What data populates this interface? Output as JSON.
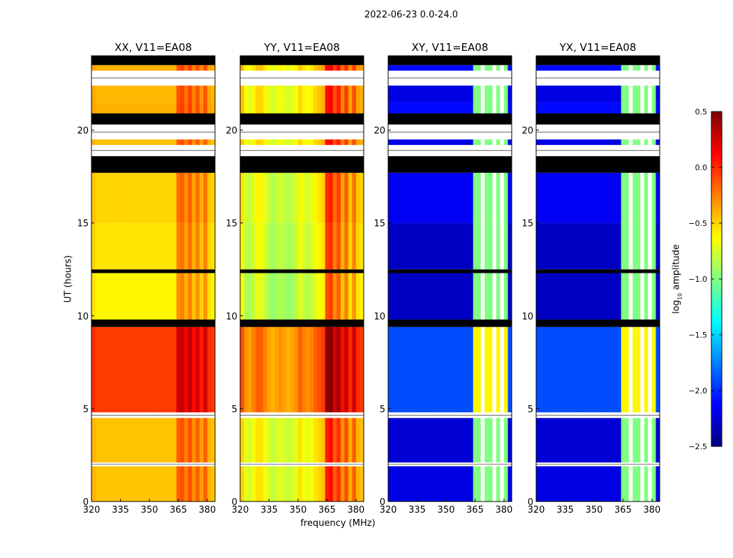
{
  "chart_data": {
    "type": "heatmap",
    "title": "2022-06-23 0.0-24.0",
    "xlabel": "frequency (MHz)",
    "ylabel": "UT (hours)",
    "xlim": [
      320,
      384
    ],
    "ylim": [
      0,
      24
    ],
    "xticks": [
      320,
      335,
      350,
      365,
      380
    ],
    "yticks": [
      0,
      5,
      10,
      15,
      20
    ],
    "colorbar": {
      "label": "log10 amplitude",
      "range": [
        -2.5,
        0.5
      ],
      "ticks": [
        "0.5",
        "0.0",
        "−0.5",
        "−1.0",
        "−1.5",
        "−2.0",
        "−2.5"
      ],
      "colormap": "jet"
    },
    "panels": [
      {
        "title": "XX, V11=EA08",
        "kind": "parallel"
      },
      {
        "title": "YY, V11=EA08",
        "kind": "parallel"
      },
      {
        "title": "XY, V11=EA08",
        "kind": "cross"
      },
      {
        "title": "YX, V11=EA08",
        "kind": "cross"
      }
    ],
    "freq_bin_MHz": 2,
    "parallel_freq_offset": [
      0.05,
      0,
      0,
      0,
      0,
      0,
      0,
      0,
      0,
      0,
      0,
      0,
      0,
      0,
      0,
      0,
      0,
      0,
      0,
      0,
      0,
      0,
      0.3,
      0.35,
      0.2,
      0.35,
      0.15,
      0.3,
      0.1,
      0.3,
      0.05,
      0
    ],
    "yy_extra_offset": [
      -0.1,
      -0.25,
      -0.3,
      -0.2,
      -0.1,
      -0.1,
      -0.2,
      -0.3,
      -0.35,
      -0.3,
      -0.25,
      -0.3,
      -0.35,
      -0.3,
      -0.25,
      -0.1,
      -0.2,
      -0.25,
      -0.2,
      -0.1,
      -0.05,
      0,
      0.2,
      0.2,
      0.1,
      0.1,
      0,
      0.05,
      -0.05,
      0,
      0,
      0
    ],
    "cross_band": [
      0,
      0,
      0,
      0,
      0,
      0,
      0,
      0,
      0,
      0,
      0,
      0,
      0,
      0,
      0,
      0,
      0,
      0,
      0,
      0,
      0,
      0,
      1,
      1,
      "gap",
      1,
      1,
      "gap",
      1,
      "gap",
      1,
      0
    ],
    "time_segments": [
      {
        "t0": 0,
        "t1": 1.9,
        "xx": -0.45,
        "yy": -0.55,
        "cross": -2.2
      },
      {
        "t0": 1.9,
        "t1": 2.1,
        "flag": "white"
      },
      {
        "t0": 2.1,
        "t1": 4.5,
        "xx": -0.45,
        "yy": -0.55,
        "cross": -2.25
      },
      {
        "t0": 4.5,
        "t1": 4.8,
        "flag": "white"
      },
      {
        "t0": 4.8,
        "t1": 9.4,
        "xx": -0.05,
        "yy": -0.15,
        "cross": -1.9
      },
      {
        "t0": 9.4,
        "t1": 9.8,
        "flag": "black"
      },
      {
        "t0": 9.8,
        "t1": 12.3,
        "xx": -0.6,
        "yy": -0.7,
        "cross": -2.3
      },
      {
        "t0": 12.3,
        "t1": 12.5,
        "flag": "black"
      },
      {
        "t0": 12.5,
        "t1": 15.0,
        "xx": -0.55,
        "yy": -0.65,
        "cross": -2.3
      },
      {
        "t0": 15.0,
        "t1": 17.7,
        "xx": -0.5,
        "yy": -0.6,
        "cross": -2.15
      },
      {
        "t0": 17.7,
        "t1": 18.6,
        "flag": "black"
      },
      {
        "t0": 18.6,
        "t1": 19.2,
        "flag": "white"
      },
      {
        "t0": 19.2,
        "t1": 19.5,
        "xx": -0.45,
        "yy": -0.5,
        "cross": -2.2
      },
      {
        "t0": 19.5,
        "t1": 20.3,
        "flag": "white"
      },
      {
        "t0": 20.3,
        "t1": 20.9,
        "flag": "black"
      },
      {
        "t0": 20.9,
        "t1": 21.5,
        "xx": -0.4,
        "yy": -0.5,
        "cross": -2.1
      },
      {
        "t0": 21.5,
        "t1": 22.4,
        "xx": -0.42,
        "yy": -0.5,
        "cross": -2.2
      },
      {
        "t0": 22.4,
        "t1": 23.2,
        "flag": "white"
      },
      {
        "t0": 23.2,
        "t1": 23.5,
        "xx": -0.4,
        "yy": -0.45,
        "cross": -2.1
      },
      {
        "t0": 23.5,
        "t1": 24,
        "flag": "black"
      }
    ]
  }
}
